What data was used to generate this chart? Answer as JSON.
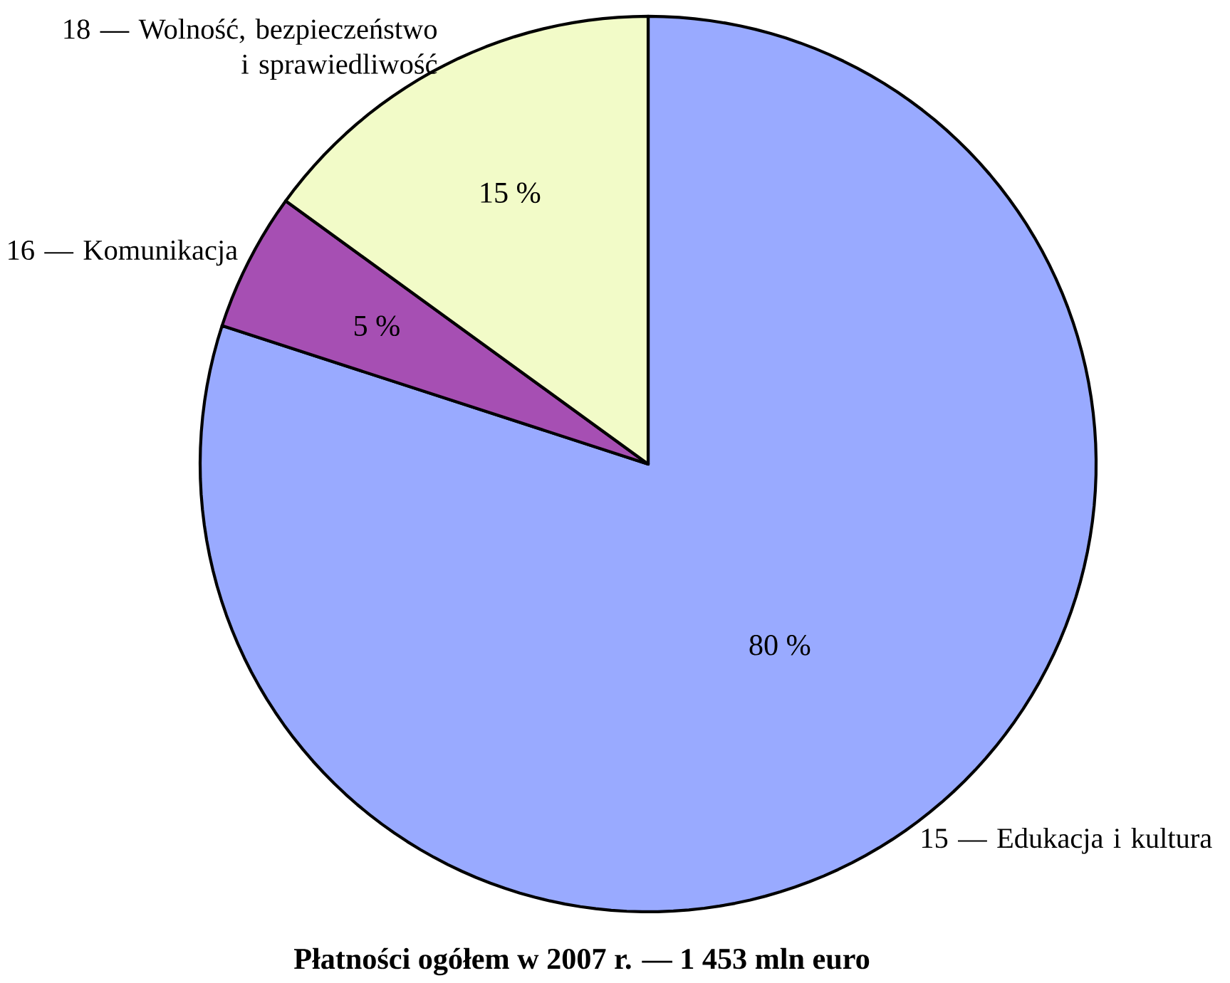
{
  "chart_data": {
    "type": "pie",
    "title": "**Płatności ogółem w 2007 r. — 1 453 mln euro**",
    "categories": [
      "15 — Edukacja i kultura",
      "16 — Komunikacja",
      "18 — Wolność, bezpieczeństwo i sprawiedliwość"
    ],
    "values": [
      80,
      5,
      15
    ],
    "colors": [
      "#99aaff",
      "#a64fb3",
      "#f2fbc8"
    ],
    "value_labels": [
      "80 %",
      "5 %",
      "15 %"
    ]
  }
}
